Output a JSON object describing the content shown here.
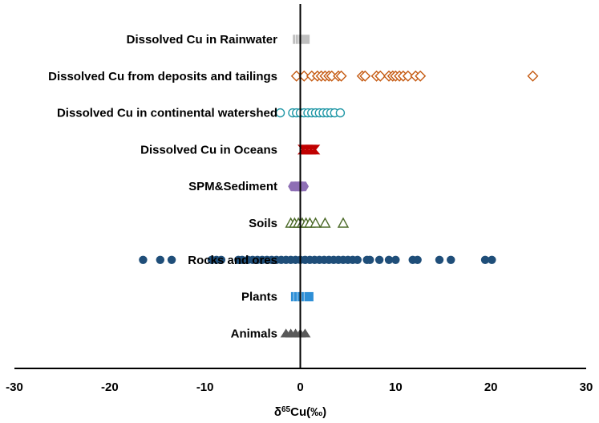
{
  "chart_data": {
    "type": "scatter",
    "title": "",
    "xlabel": "δ65Cu(‰)",
    "xlabel_parts": {
      "prefix": "δ",
      "sup": "65",
      "suffix": "Cu(‰)"
    },
    "ylabel": "",
    "xlim": [
      -30,
      30
    ],
    "xticks": [
      -30,
      -20,
      -10,
      0,
      10,
      20,
      30
    ],
    "grid": false,
    "legend": "none",
    "categories": [
      "Dissolved Cu in Rainwater",
      "Dissolved Cu from deposits and tailings",
      "Dissolved Cu in continental watershed",
      "Dissolved Cu in Oceans",
      "SPM&Sediment",
      "Soils",
      "Rocks and ores",
      "Plants",
      "Animals"
    ],
    "series": [
      {
        "category": "Dissolved Cu in Rainwater",
        "marker": "square-filled",
        "color": "#BFBFBF",
        "x": [
          -0.3,
          0.0,
          0.3,
          0.5
        ]
      },
      {
        "category": "Dissolved Cu from deposits and tailings",
        "marker": "diamond-open",
        "color": "#C55A11",
        "x": [
          -0.4,
          0.4,
          1.2,
          1.8,
          2.2,
          2.6,
          3.0,
          3.3,
          4.0,
          4.3,
          6.5,
          6.8,
          8.0,
          8.4,
          9.3,
          9.7,
          10.0,
          10.4,
          10.8,
          11.3,
          12.1,
          12.6,
          24.4
        ]
      },
      {
        "category": "Dissolved Cu in continental watershed",
        "marker": "circle-open",
        "color": "#1F97A6",
        "x": [
          -2.1,
          -0.8,
          -0.4,
          0.0,
          0.4,
          0.8,
          1.2,
          1.6,
          2.0,
          2.4,
          2.8,
          3.2,
          3.6,
          4.2
        ]
      },
      {
        "category": "Dissolved Cu in Oceans",
        "marker": "chevron-filled",
        "color": "#C00000",
        "x": [
          0.3,
          0.7,
          1.1,
          1.5
        ]
      },
      {
        "category": "SPM&Sediment",
        "marker": "hexagon-filled",
        "color": "#8E6FB5",
        "x": [
          -0.7,
          -0.3,
          0.0,
          0.3
        ]
      },
      {
        "category": "Soils",
        "marker": "triangle-open",
        "color": "#4D6B2A",
        "x": [
          -1.0,
          -0.6,
          -0.2,
          0.2,
          0.6,
          1.0,
          1.6,
          2.6,
          4.5
        ]
      },
      {
        "category": "Rocks and ores",
        "marker": "circle-filled",
        "color": "#1F4E79",
        "x": [
          -16.5,
          -14.7,
          -13.5,
          -9.3,
          -8.8,
          -8.3,
          -6.5,
          -6.1,
          -5.5,
          -5.0,
          -4.5,
          -4.0,
          -3.5,
          -3.0,
          -2.5,
          -2.0,
          -1.5,
          -1.0,
          -0.5,
          0.0,
          0.5,
          1.0,
          1.5,
          2.0,
          2.5,
          3.0,
          3.5,
          4.0,
          4.5,
          5.0,
          5.5,
          6.0,
          7.0,
          7.3,
          8.3,
          9.3,
          10.0,
          11.8,
          12.3,
          14.6,
          15.8,
          19.4,
          20.1
        ]
      },
      {
        "category": "Plants",
        "marker": "square-filled",
        "color": "#2E8FD6",
        "x": [
          -0.5,
          -0.2,
          0.2,
          0.6,
          0.9
        ]
      },
      {
        "category": "Animals",
        "marker": "triangle-filled",
        "color": "#595959",
        "x": [
          -1.5,
          -1.0,
          -0.5,
          0.0,
          0.5
        ]
      }
    ]
  }
}
